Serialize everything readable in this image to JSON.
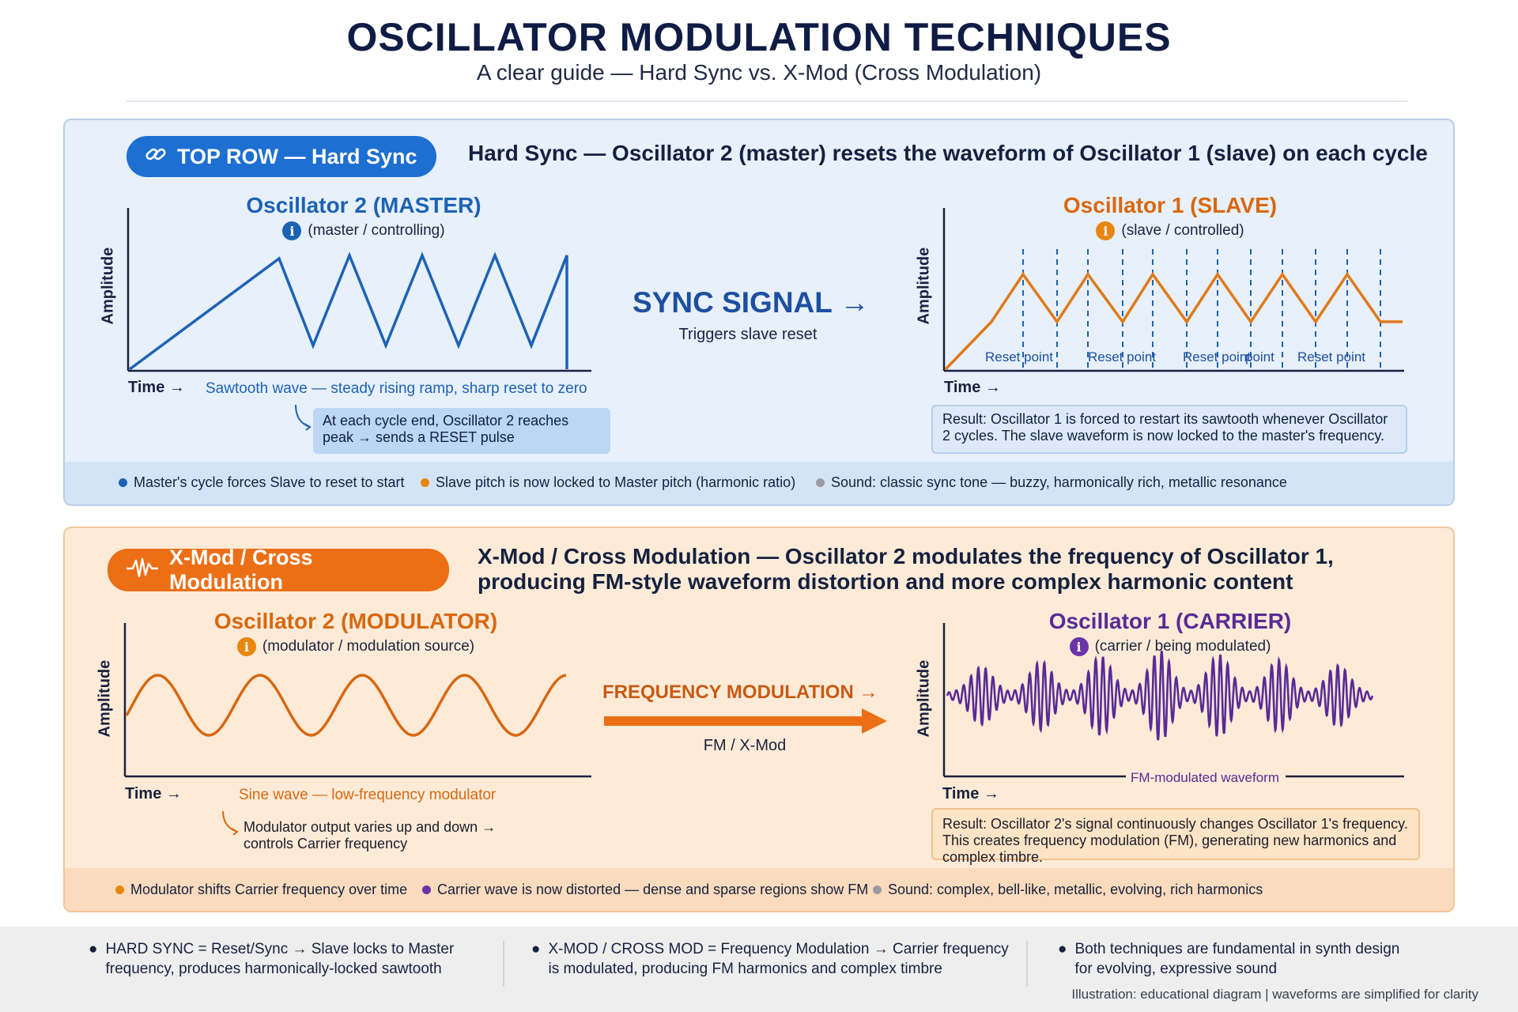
{
  "header": {
    "title": "OSCILLATOR MODULATION TECHNIQUES",
    "subtitle": "A clear guide — Hard Sync vs. X-Mod (Cross Modulation)"
  },
  "sync": {
    "pill_label": "TOP ROW — Hard Sync",
    "pill_icon": "link-icon",
    "heading": "Hard Sync — Oscillator 2 (master) resets the waveform of Oscillator 1 (slave) on each cycle",
    "master": {
      "title": "Oscillator 2 (MASTER)",
      "subtitle": "(master / controlling)",
      "ylabel": "Amplitude",
      "xlabel": "Time →",
      "caption": "Sawtooth wave — steady rising ramp, sharp reset to zero",
      "callout": "At each cycle end, Oscillator 2 reaches peak → sends a RESET pulse"
    },
    "signal": {
      "label": "SYNC SIGNAL →",
      "sub": "Triggers slave reset"
    },
    "slave": {
      "title": "Oscillator 1 (SLAVE)",
      "subtitle": "(slave / controlled)",
      "ylabel": "Amplitude",
      "xlabel": "Time →",
      "reset_labels": [
        "Reset point",
        "Reset point",
        "Reset point",
        "point",
        "Reset point"
      ],
      "result": "Result: Oscillator 1 is forced to restart its sawtooth whenever Oscillator 2 cycles. The slave waveform is now locked to the master's frequency."
    },
    "bullets": [
      "Master's cycle forces Slave to reset to start",
      "Slave pitch is now locked to Master pitch (harmonic ratio)",
      "Sound: classic sync tone — buzzy, harmonically rich, metallic resonance"
    ]
  },
  "xmod": {
    "pill_label": "X-Mod / Cross Modulation",
    "pill_icon": "waveform-icon",
    "heading": "X-Mod / Cross Modulation — Oscillator 2 modulates the frequency of Oscillator 1, producing FM-style waveform distortion and more complex harmonic content",
    "modulator": {
      "title": "Oscillator 2 (MODULATOR)",
      "subtitle": "(modulator / modulation source)",
      "ylabel": "Amplitude",
      "xlabel": "Time →",
      "caption": "Sine wave — low-frequency modulator",
      "callout": "Modulator output varies up and down → controls Carrier frequency"
    },
    "signal": {
      "label": "FREQUENCY MODULATION →",
      "sub": "FM / X-Mod"
    },
    "carrier": {
      "title": "Oscillator 1 (CARRIER)",
      "subtitle": "(carrier / being modulated)",
      "ylabel": "Amplitude",
      "xlabel": "Time →",
      "wave_label": "FM-modulated waveform",
      "result": "Result: Oscillator 2's signal continuously changes Oscillator 1's frequency. This creates frequency modulation (FM), generating new harmonics and complex timbre."
    },
    "bullets": [
      "Modulator shifts Carrier frequency over time",
      "Carrier wave is now distorted — dense and sparse regions show FM",
      "Sound: complex, bell-like, metallic, evolving, rich harmonics"
    ]
  },
  "footer": {
    "col1": "HARD SYNC = Reset/Sync → Slave locks to Master frequency, produces harmonically-locked sawtooth",
    "col2": "X-MOD / CROSS MOD = Frequency Modulation → Carrier frequency is modulated, producing FM harmonics and complex timbre",
    "col3": "Both techniques are fundamental in synth design for evolving, expressive sound",
    "note": "Illustration: educational diagram | waveforms are simplified for clarity"
  },
  "colors": {
    "blue": "#1d63b5",
    "orange": "#e06a12",
    "purple": "#5b2a96",
    "grey": "#9a9aa0"
  }
}
